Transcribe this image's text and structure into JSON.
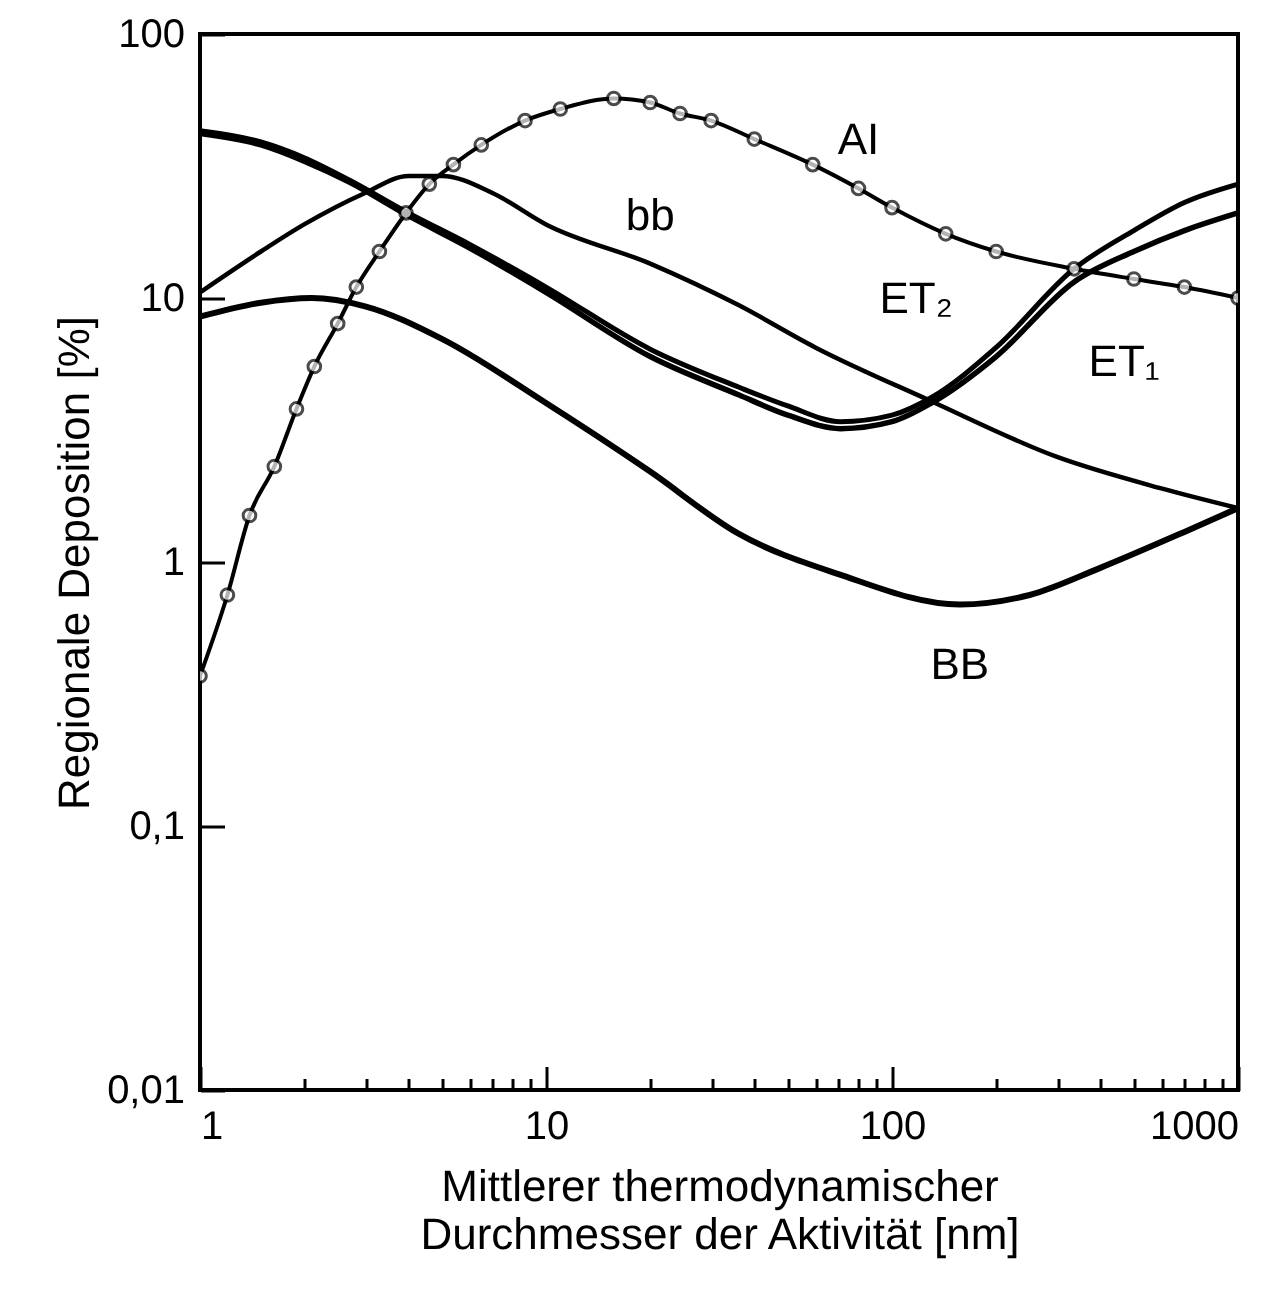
{
  "chart_data": {
    "type": "line",
    "xlabel": "Mittlerer thermodynamischer\nDurchmesser der Aktivität [nm]",
    "ylabel": "Regionale Deposition [%]",
    "log": "xy",
    "grid": false,
    "marker": "none",
    "line_style": "solid",
    "xlim": [
      1,
      1000
    ],
    "ylim": [
      0.01,
      100
    ],
    "xticks": [
      1,
      {
        "value": 2,
        "label": null
      },
      {
        "value": 3,
        "label": null
      },
      {
        "value": 4,
        "label": null
      },
      {
        "value": 5,
        "label": null
      },
      {
        "value": 6,
        "label": null
      },
      {
        "value": 7,
        "label": null
      },
      {
        "value": 8,
        "label": null
      },
      {
        "value": 9,
        "label": null
      },
      10,
      {
        "value": 20,
        "label": null
      },
      {
        "value": 30,
        "label": null
      },
      {
        "value": 40,
        "label": null
      },
      {
        "value": 50,
        "label": null
      },
      {
        "value": 60,
        "label": null
      },
      {
        "value": 70,
        "label": null
      },
      {
        "value": 80,
        "label": null
      },
      {
        "value": 90,
        "label": null
      },
      100,
      {
        "value": 200,
        "label": null
      },
      {
        "value": 300,
        "label": null
      },
      {
        "value": 400,
        "label": null
      },
      {
        "value": 500,
        "label": null
      },
      {
        "value": 600,
        "label": null
      },
      {
        "value": 700,
        "label": null
      },
      {
        "value": 800,
        "label": null
      },
      {
        "value": 900,
        "label": null
      },
      1000
    ],
    "yticks": [
      {
        "value": 0.01,
        "label": "0,01"
      },
      {
        "value": 0.1,
        "label": "0,1"
      },
      1,
      10,
      100
    ],
    "series": [
      {
        "name": "AI",
        "color": "#000000",
        "marker": "circle",
        "x": [
          1,
          1.2,
          1.39,
          1.64,
          1.9,
          2.14,
          2.5,
          2.83,
          3.3,
          3.94,
          4.6,
          5.4,
          6.5,
          8.7,
          11,
          15.7,
          20,
          24.4,
          30,
          40,
          59,
          80,
          100,
          143,
          200,
          336,
          500,
          700,
          1000
        ],
        "values": [
          0.37,
          0.75,
          1.5,
          2.3,
          3.8,
          5.5,
          8,
          11,
          15,
          21,
          27,
          32,
          38,
          47,
          52,
          57,
          55,
          50,
          47,
          40,
          32,
          26,
          22,
          17.5,
          15,
          12.9,
          11.8,
          11,
          10
        ]
      },
      {
        "name": "bb",
        "color": "#000000",
        "x": [
          1,
          1.5,
          2,
          3,
          4,
          5,
          7,
          10,
          20,
          36,
          60,
          128,
          300,
          600,
          1000
        ],
        "values": [
          10.5,
          15,
          19,
          25,
          29,
          29,
          25,
          19,
          13.5,
          9.4,
          6.5,
          4.1,
          2.5,
          1.9,
          1.6
        ]
      },
      {
        "name": "ET₂",
        "color": "#000000",
        "x": [
          1,
          1.5,
          2,
          2.7,
          4,
          6,
          10,
          20,
          36,
          50,
          71,
          100,
          130,
          200,
          336,
          500,
          700,
          1000
        ],
        "values": [
          43,
          39,
          34,
          28,
          21,
          16,
          11,
          6.4,
          4.6,
          3.9,
          3.4,
          3.6,
          4.2,
          6.5,
          12.9,
          18,
          23,
          27
        ]
      },
      {
        "name": "ET₁",
        "color": "#000000",
        "x": [
          1,
          1.5,
          2,
          2.7,
          4,
          6,
          10,
          20,
          36,
          50,
          71,
          100,
          130,
          200,
          336,
          500,
          700,
          1000
        ],
        "values": [
          42,
          38,
          33,
          27.5,
          20.5,
          15.5,
          10.5,
          6,
          4.3,
          3.6,
          3.2,
          3.4,
          4,
          6,
          11.5,
          15,
          18,
          21
        ]
      },
      {
        "name": "BB",
        "color": "#000000",
        "x": [
          1,
          1.5,
          2.1,
          3,
          5,
          10,
          20,
          36,
          70,
          157,
          250,
          400,
          700,
          1000
        ],
        "values": [
          8.5,
          9.6,
          10,
          9.3,
          7,
          4,
          2.2,
          1.28,
          0.9,
          0.69,
          0.75,
          0.95,
          1.3,
          1.6
        ]
      }
    ]
  }
}
